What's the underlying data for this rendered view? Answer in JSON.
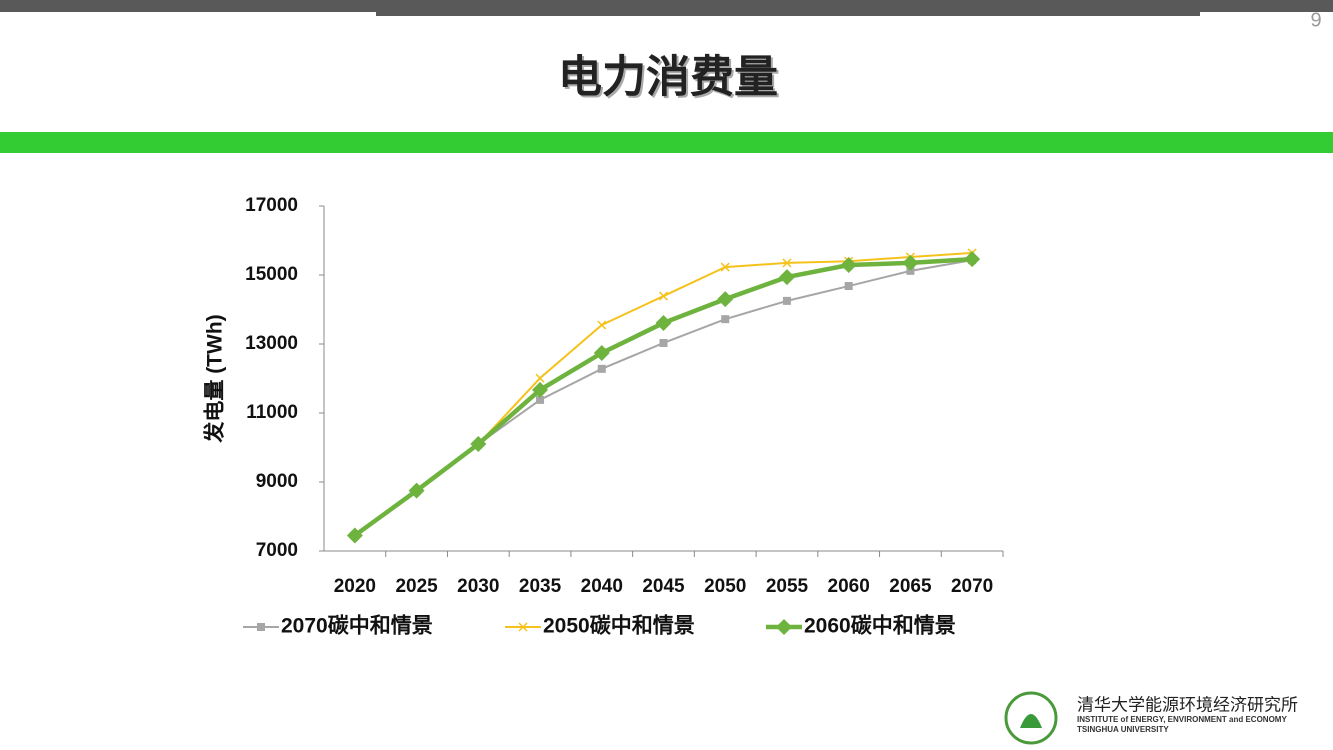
{
  "page_number": 9,
  "footer": {
    "institute_cn": "清华大学能源环境经济研究所",
    "institute_en": "INSTITUTE of ENERGY, ENVIRONMENT and ECONOMY",
    "university": "TSINGHUA UNIVERSITY"
  },
  "chart_data": {
    "type": "line",
    "title": "电力消费量",
    "y_label": "发电量 (TWh)",
    "categories": [
      "2020",
      "2025",
      "2030",
      "2035",
      "2040",
      "2045",
      "2050",
      "2055",
      "2060",
      "2065",
      "2070"
    ],
    "series": [
      {
        "name": "2070碳中和情景",
        "color": "#a6a6a6",
        "marker": "square",
        "values": [
          7450,
          8750,
          10100,
          11380,
          12280,
          13030,
          13720,
          14250,
          14680,
          15120,
          15430
        ]
      },
      {
        "name": "2050碳中和情景",
        "color": "#f5c21b",
        "marker": "x",
        "values": [
          7450,
          8750,
          10100,
          12010,
          13550,
          14390,
          15230,
          15350,
          15400,
          15520,
          15640
        ]
      },
      {
        "name": "2060碳中和情景",
        "color": "#6fb33f",
        "marker": "diamond",
        "values": [
          7450,
          8750,
          10100,
          11670,
          12740,
          13610,
          14300,
          14940,
          15290,
          15350,
          15460
        ]
      }
    ],
    "ylim": [
      7000,
      17000
    ],
    "yticks": [
      7000,
      9000,
      11000,
      13000,
      15000,
      17000
    ],
    "grid": false,
    "legend": "bottom"
  }
}
